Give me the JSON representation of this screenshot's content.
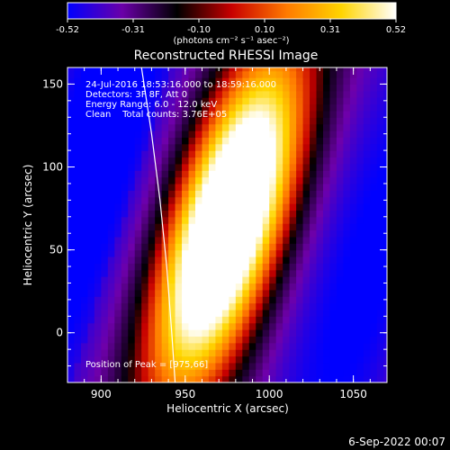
{
  "chart_data": {
    "type": "heatmap",
    "title": "Reconstructed RHESSI Image",
    "xlabel": "Heliocentric X (arcsec)",
    "ylabel": "Heliocentric Y (arcsec)",
    "xlim": [
      880,
      1070
    ],
    "ylim": [
      -30,
      160
    ],
    "x_ticks": [
      900,
      950,
      1000,
      1050
    ],
    "y_ticks": [
      0,
      50,
      100,
      150
    ],
    "colorbar": {
      "min": -0.52,
      "max": 0.52,
      "ticks": [
        "-0.52",
        "-0.31",
        "-0.10",
        "0.10",
        "0.31",
        "0.52"
      ],
      "unit_label": "(photons cm⁻² s⁻¹ asec⁻²)",
      "colors": [
        "#0000ff",
        "#6a00a8",
        "#000000",
        "#c80000",
        "#ff7a00",
        "#ffd400",
        "#ffffff"
      ]
    },
    "annotations": [
      "24-Jul-2016 18:53:16.000 to 18:59:16.000",
      "Detectors: 3F 8F, Att 0",
      "Energy Range: 6.0 - 12.0 keV",
      "Clean    Total counts: 3.76E+05"
    ],
    "peak_label": "Position of Peak = [975,66]",
    "peak": [
      975,
      66
    ],
    "limb_curve": [
      [
        924,
        160
      ],
      [
        930,
        120
      ],
      [
        935,
        80
      ],
      [
        939,
        40
      ],
      [
        942,
        0
      ],
      [
        944,
        -30
      ]
    ]
  },
  "footer": {
    "date": "6-Sep-2022 00:07"
  }
}
